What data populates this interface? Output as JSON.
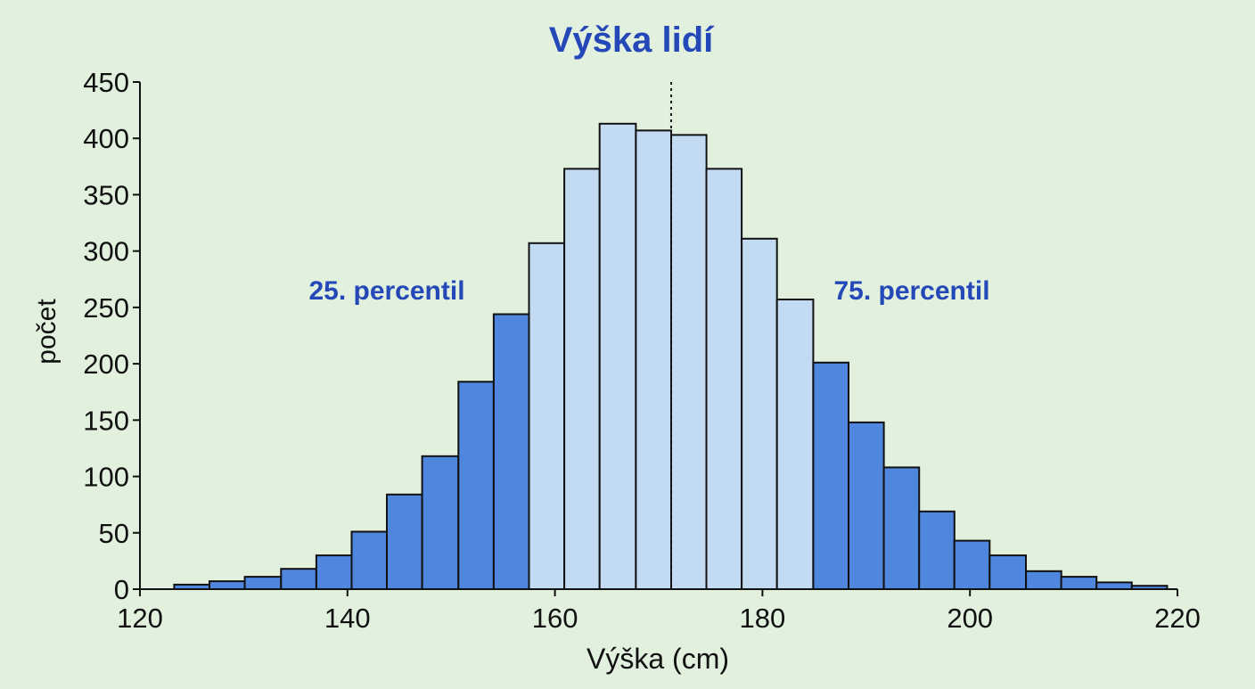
{
  "chart_data": {
    "type": "bar",
    "subtype": "histogram",
    "title": "Výška lidí",
    "xlabel": "Výška (cm)",
    "ylabel": "počet",
    "xlim": [
      120,
      220
    ],
    "ylim": [
      0,
      450
    ],
    "x_ticks": [
      120,
      140,
      160,
      180,
      200,
      220
    ],
    "y_ticks": [
      0,
      50,
      100,
      150,
      200,
      250,
      300,
      350,
      400,
      450
    ],
    "grid": false,
    "bin_edges": [
      123.3,
      126.7,
      130.1,
      133.6,
      137.0,
      140.4,
      143.8,
      147.2,
      150.7,
      154.1,
      157.5,
      160.9,
      164.3,
      167.8,
      171.2,
      174.6,
      178.0,
      181.4,
      184.9,
      188.3,
      191.7,
      195.1,
      198.5,
      201.9,
      205.4,
      208.8,
      212.2,
      215.6,
      219.0
    ],
    "values": [
      4,
      7,
      11,
      18,
      30,
      51,
      84,
      118,
      184,
      244,
      307,
      373,
      413,
      407,
      403,
      373,
      311,
      257,
      201,
      148,
      108,
      69,
      43,
      30,
      16,
      11,
      6,
      3
    ],
    "middle_range_bins": [
      10,
      17
    ],
    "median_line_x": 171.2,
    "annotations": [
      {
        "text": "25. percentil",
        "color": "#2548b8"
      },
      {
        "text": "75. percentil",
        "color": "#2548b8"
      }
    ],
    "colors": {
      "background": "#e2f0de",
      "outer_bars": "#4f86de",
      "middle_bars": "#c2dbf2",
      "bar_edge": "#111111",
      "title": "#2548b8",
      "annotation": "#2548b8"
    }
  }
}
